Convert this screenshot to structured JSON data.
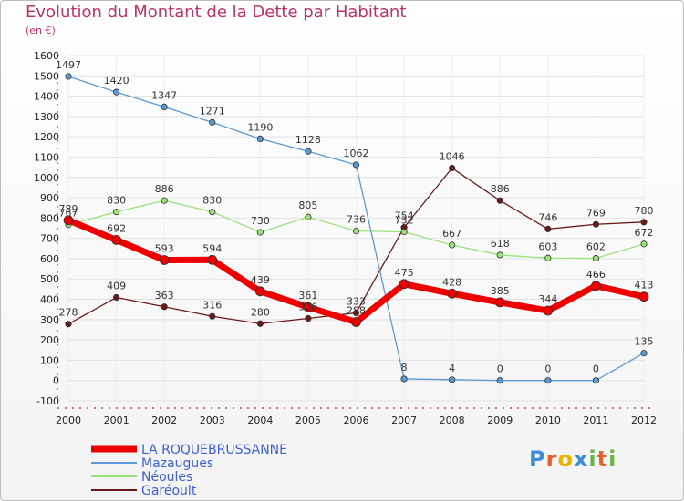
{
  "title": "Evolution du Montant de la Dette par Habitant",
  "subtitle": "(en €)",
  "logo": {
    "text": "Proxiti",
    "letters": [
      "P",
      "r",
      "o",
      "x",
      "i",
      "t",
      "i"
    ],
    "colors": [
      "#3b8fd6",
      "#e6612a",
      "#e8b400",
      "#3b8fd6",
      "#6ab344",
      "#e6612a",
      "#6ab344"
    ]
  },
  "chart_data": {
    "type": "line",
    "x": [
      2000,
      2001,
      2002,
      2003,
      2004,
      2005,
      2006,
      2007,
      2008,
      2009,
      2010,
      2011,
      2012
    ],
    "ylim": [
      -100,
      1600
    ],
    "yticks": [
      -100,
      0,
      100,
      200,
      300,
      400,
      500,
      600,
      700,
      800,
      900,
      1000,
      1100,
      1200,
      1300,
      1400,
      1500,
      1600
    ],
    "grid": true,
    "legend_position": "bottom-left",
    "series": [
      {
        "name": "Garéoult",
        "color": "#6b1a1a",
        "width": 1.3,
        "values": [
          278,
          409,
          363,
          316,
          280,
          306,
          333,
          754,
          1046,
          886,
          746,
          769,
          780
        ],
        "labels": [
          "278",
          "409",
          "363",
          "316",
          "280",
          "306",
          "333",
          "754",
          "1046",
          "886",
          "746",
          "769",
          "780"
        ]
      },
      {
        "name": "Néoules",
        "color": "#99e27a",
        "width": 1.3,
        "values": [
          767,
          830,
          886,
          830,
          730,
          805,
          736,
          732,
          667,
          618,
          603,
          602,
          672
        ],
        "labels": [
          "767",
          "830",
          "886",
          "830",
          "730",
          "805",
          "736",
          "732",
          "667",
          "618",
          "603",
          "602",
          "672"
        ]
      },
      {
        "name": "Mazaugues",
        "color": "#5a9bd5",
        "width": 1.3,
        "values": [
          1497,
          1420,
          1347,
          1271,
          1190,
          1128,
          1062,
          8,
          4,
          0,
          0,
          0,
          135
        ],
        "labels": [
          "1497",
          "1420",
          "1347",
          "1271",
          "1190",
          "1128",
          "1062",
          "8",
          "4",
          "0",
          "0",
          "0",
          "135"
        ]
      },
      {
        "name": "LA ROQUEBRUSSANNE",
        "color": "#ee0000",
        "width": 7,
        "values": [
          789,
          692,
          593,
          594,
          439,
          361,
          288,
          475,
          428,
          385,
          344,
          466,
          413
        ],
        "labels": [
          "789",
          "692",
          "593",
          "594",
          "439",
          "361",
          "288",
          "475",
          "428",
          "385",
          "344",
          "466",
          "413"
        ]
      }
    ],
    "legend_order": [
      "LA ROQUEBRUSSANNE",
      "Mazaugues",
      "Néoules",
      "Garéoult"
    ]
  }
}
